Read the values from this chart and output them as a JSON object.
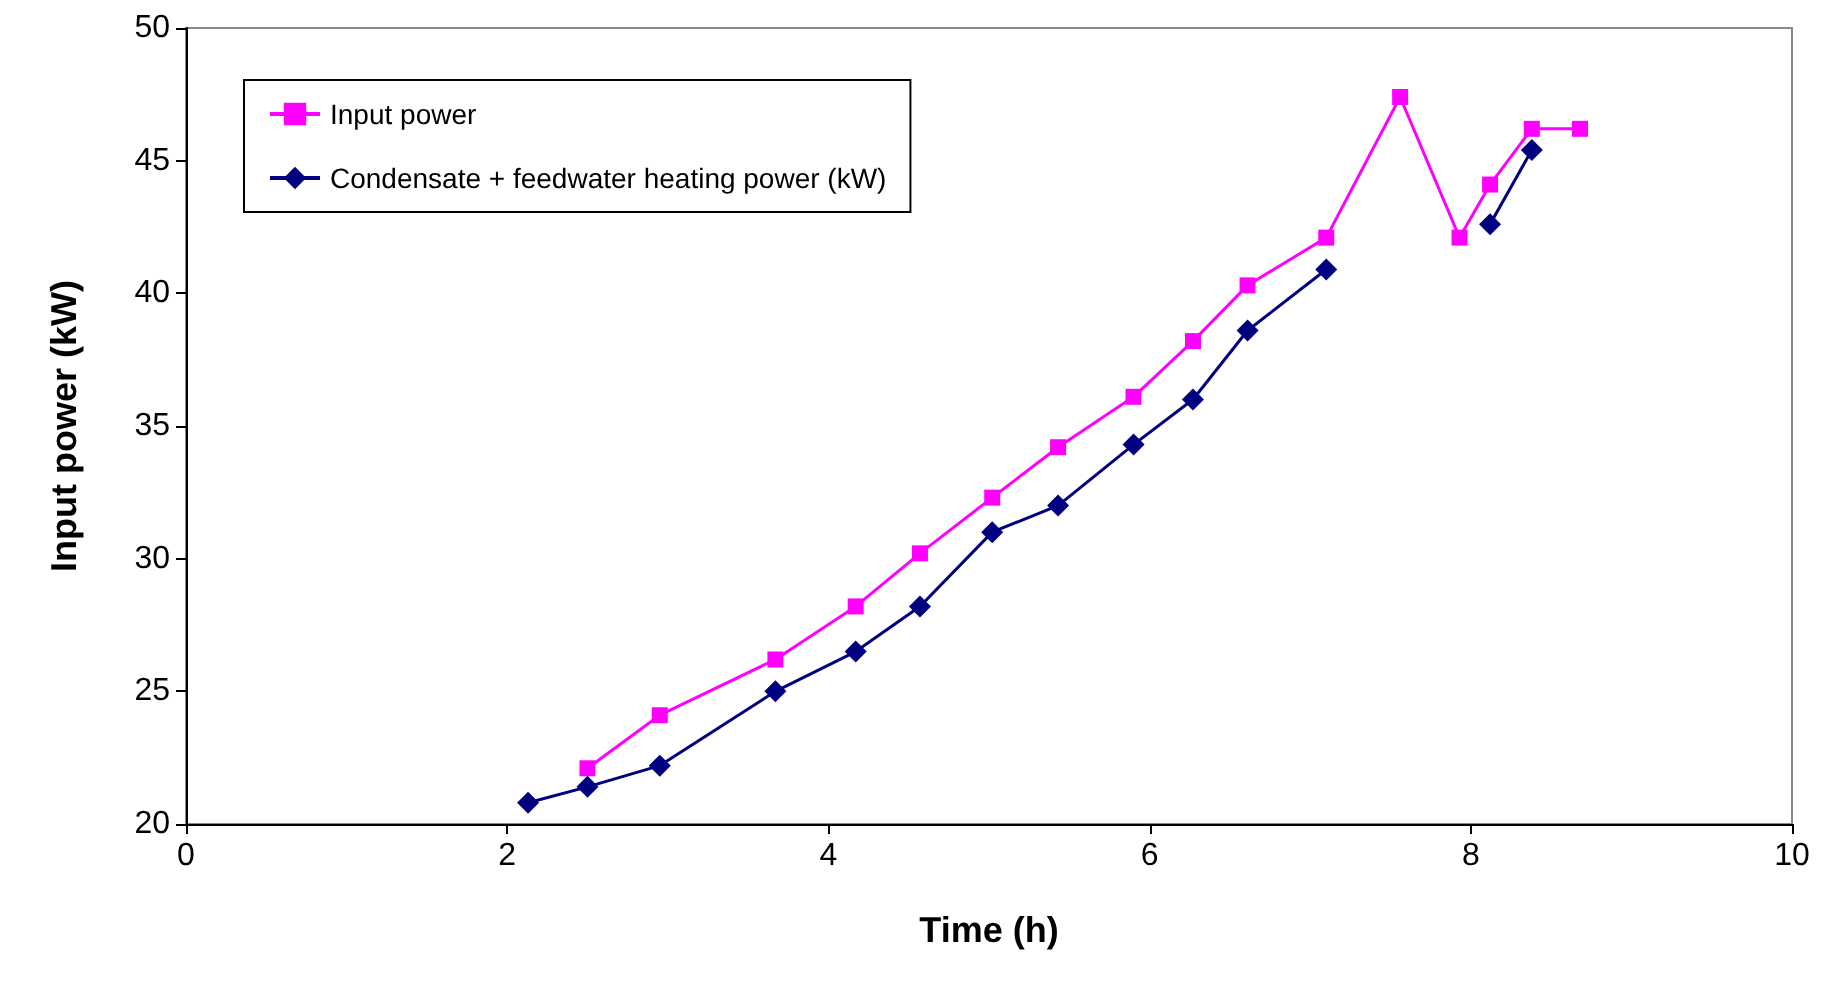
{
  "chart_data": {
    "type": "line",
    "xlabel": "Time (h)",
    "ylabel": "Input power (kW)",
    "x": [
      2.13,
      2.5,
      2.95,
      3.67,
      4.17,
      4.57,
      5.02,
      5.43,
      5.9,
      6.27,
      6.61,
      7.1,
      7.56,
      7.93,
      8.12,
      8.38,
      8.68
    ],
    "series": [
      {
        "name": "Input power",
        "color": "#ff00ff",
        "marker": "square",
        "values": [
          null,
          22.1,
          24.1,
          26.2,
          28.2,
          30.2,
          32.3,
          34.2,
          36.1,
          38.2,
          40.3,
          42.1,
          47.4,
          42.1,
          44.1,
          46.2,
          46.2
        ]
      },
      {
        "name": "Condensate + feedwater heating power (kW)",
        "color": "#000080",
        "marker": "diamond",
        "values": [
          20.8,
          21.4,
          22.2,
          25.0,
          26.5,
          28.2,
          31.0,
          32.0,
          34.3,
          36.0,
          38.6,
          40.9,
          null,
          null,
          42.6,
          45.4,
          null
        ]
      }
    ],
    "xlim": [
      0,
      10
    ],
    "xticks": [
      0,
      2,
      4,
      6,
      8,
      10
    ],
    "ylim": [
      20,
      50
    ],
    "yticks": [
      20,
      25,
      30,
      35,
      40,
      45,
      50
    ],
    "grid": false,
    "legend": "top left",
    "line_style": "solid"
  }
}
